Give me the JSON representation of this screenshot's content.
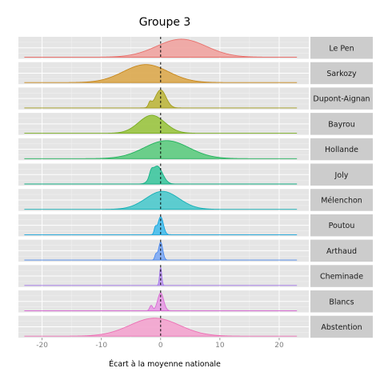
{
  "chart_data": {
    "type": "area",
    "title": "Groupe 3",
    "xlabel": "Écart à la moyenne nationale",
    "ylabel": "",
    "xlim": [
      -24,
      25
    ],
    "x_ticks": [
      -20,
      -10,
      0,
      10,
      20
    ],
    "x_tick_labels": [
      "-20",
      "-10",
      "0",
      "10",
      "20"
    ],
    "support": [
      -23,
      23
    ],
    "reference_line": 0,
    "grid": true,
    "legend": "none",
    "panels": [
      {
        "name": "Le Pen",
        "color": "#F0A3A0",
        "stroke": "#E8706B",
        "components": [
          {
            "mu": 3.5,
            "sd": 4.2,
            "w": 1.0
          }
        ]
      },
      {
        "name": "Sarkozy",
        "color": "#DCA84E",
        "stroke": "#C7871B",
        "components": [
          {
            "mu": -2.5,
            "sd": 3.8,
            "w": 1.0
          }
        ]
      },
      {
        "name": "Dupont-Aignan",
        "color": "#BDB63E",
        "stroke": "#A29B1C",
        "components": [
          {
            "mu": 0.0,
            "sd": 0.9,
            "w": 1.0
          },
          {
            "mu": -1.8,
            "sd": 0.25,
            "w": 0.25
          }
        ]
      },
      {
        "name": "Bayrou",
        "color": "#9AC440",
        "stroke": "#79AD22",
        "components": [
          {
            "mu": -1.5,
            "sd": 2.2,
            "w": 1.0
          }
        ]
      },
      {
        "name": "Hollande",
        "color": "#5DCB80",
        "stroke": "#1FB15B",
        "components": [
          {
            "mu": 1.0,
            "sd": 3.8,
            "w": 1.0
          }
        ]
      },
      {
        "name": "Joly",
        "color": "#3EC79E",
        "stroke": "#15B085",
        "components": [
          {
            "mu": -0.6,
            "sd": 0.9,
            "w": 1.0
          },
          {
            "mu": -1.6,
            "sd": 0.3,
            "w": 0.3
          }
        ]
      },
      {
        "name": "Mélenchon",
        "color": "#4CC9CC",
        "stroke": "#14AFB5",
        "components": [
          {
            "mu": 0.3,
            "sd": 2.8,
            "w": 1.0
          }
        ]
      },
      {
        "name": "Poutou",
        "color": "#45BCEB",
        "stroke": "#12A3DA",
        "components": [
          {
            "mu": 0.0,
            "sd": 0.45,
            "w": 1.0
          },
          {
            "mu": -0.9,
            "sd": 0.2,
            "w": 0.35
          }
        ]
      },
      {
        "name": "Arthaud",
        "color": "#7CA8F4",
        "stroke": "#4A88EC",
        "components": [
          {
            "mu": 0.0,
            "sd": 0.35,
            "w": 1.0
          },
          {
            "mu": -0.8,
            "sd": 0.2,
            "w": 0.3
          }
        ]
      },
      {
        "name": "Cheminade",
        "color": "#C19BF2",
        "stroke": "#A174E8",
        "components": [
          {
            "mu": 0.0,
            "sd": 0.18,
            "w": 1.0
          }
        ]
      },
      {
        "name": "Blancs",
        "color": "#E79AE3",
        "stroke": "#D86BD4",
        "components": [
          {
            "mu": 0.0,
            "sd": 0.5,
            "w": 1.0
          },
          {
            "mu": -1.6,
            "sd": 0.25,
            "w": 0.3
          }
        ]
      },
      {
        "name": "Abstention",
        "color": "#F3A3CE",
        "stroke": "#EC6FB4",
        "components": [
          {
            "mu": -1.0,
            "sd": 4.2,
            "w": 1.0
          }
        ]
      }
    ]
  }
}
